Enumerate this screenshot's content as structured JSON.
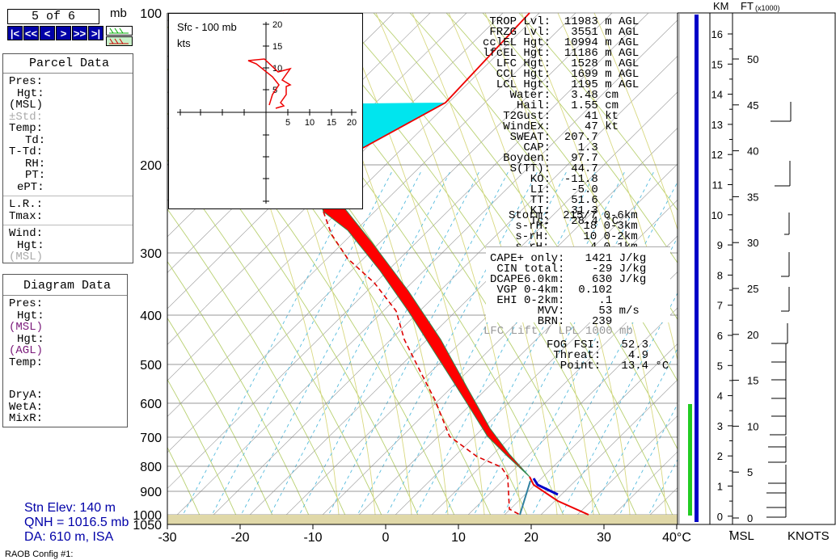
{
  "header": {
    "page_counter": "5 of 6",
    "unit": "mb"
  },
  "nav": {
    "buttons": [
      "|<",
      "<<",
      "<",
      ">",
      ">>",
      ">|"
    ]
  },
  "parcel_panel": {
    "title": "Parcel Data",
    "rows_a": [
      "Pres:",
      "Hgt:",
      "(MSL)",
      "±Std:",
      "Temp:",
      "Td:",
      "T-Td:",
      "RH:",
      "PT:",
      "ePT:"
    ],
    "rows_b": [
      "L.R.:",
      "Tmax:"
    ],
    "rows_c": [
      "Wind:",
      "Hgt:",
      "(MSL)"
    ]
  },
  "diagram_panel": {
    "title": "Diagram Data",
    "rows_a": [
      "Pres:",
      "Hgt:",
      "(MSL)",
      "Hgt:",
      "(AGL)",
      "Temp:"
    ],
    "rows_b": [
      "DryA:",
      "WetA:",
      "MixR:"
    ]
  },
  "station": {
    "elev": "Stn Elev: 140 m",
    "qnh": "QNH = 1016.5 mb",
    "da": "DA: 610 m, ISA"
  },
  "config": "RAOB Config #1:",
  "skewt": {
    "p_labels": [
      "100",
      "200",
      "300",
      "400",
      "500",
      "600",
      "700",
      "800",
      "900",
      "1000",
      "1050"
    ],
    "t_labels": [
      "-30",
      "-20",
      "-10",
      "0",
      "10",
      "20",
      "30",
      "40°C"
    ]
  },
  "hodograph": {
    "title": "Sfc - 100 mb",
    "unit": "kts",
    "y_ticks": [
      "20",
      "15",
      "10",
      "5"
    ],
    "x_ticks": [
      "5",
      "10",
      "15",
      "20"
    ]
  },
  "indices": {
    "block1": [
      [
        "TROP Lvl:",
        "11983",
        "m AGL"
      ],
      [
        "FRZG Lvl:",
        "3551",
        "m AGL"
      ],
      [
        "cclEL Hgt:",
        "10994",
        "m AGL"
      ],
      [
        "lfcEL Hgt:",
        "11186",
        "m AGL"
      ],
      [
        "LFC Hgt:",
        "1528",
        "m AGL"
      ],
      [
        "CCL Hgt:",
        "1699",
        "m AGL"
      ],
      [
        "LCL Hgt:",
        "1195",
        "m AGL"
      ],
      [
        "Water:",
        "3.48",
        "cm"
      ],
      [
        "Hail:",
        "1.55",
        "cm"
      ],
      [
        "T2Gust:",
        "41",
        "kt"
      ],
      [
        "WindEx:",
        "47",
        "kt"
      ],
      [
        "SWEAT:",
        "207.7",
        ""
      ],
      [
        "CAP:",
        "1.3",
        ""
      ],
      [
        "Boyden:",
        "97.7",
        ""
      ],
      [
        "S(TT):",
        "44.7",
        ""
      ],
      [
        "KO:",
        "-11.8",
        ""
      ],
      [
        "LI:",
        "-5.0",
        ""
      ],
      [
        "TT:",
        "51.6",
        ""
      ],
      [
        "KI:",
        "31.3",
        ""
      ],
      [
        "Tc:",
        "28.4",
        "°C"
      ]
    ],
    "block2": [
      [
        "Storm:",
        "215/7",
        "0-6km"
      ],
      [
        "s-rH:",
        "18",
        "0-3km"
      ],
      [
        "s-rH:",
        "10",
        "0-2km"
      ],
      [
        "s-rH:",
        "4",
        "0-1km"
      ]
    ],
    "block3": [
      [
        "CAPE+ only:",
        "1421",
        "J/kg"
      ],
      [
        "CIN total:",
        "-29",
        "J/kg"
      ],
      [
        "DCAPE6.0km:",
        "630",
        "J/kg"
      ],
      [
        "VGP 0-4km:",
        "0.102",
        ""
      ],
      [
        "EHI 0-2km:",
        ".1",
        ""
      ],
      [
        "MVV:",
        "53",
        "m/s"
      ],
      [
        "BRN:",
        "239",
        ""
      ]
    ],
    "lift_note": "LFC Lift / LPL 1000 mb",
    "fog": [
      [
        "FOG FSI:",
        "52.3",
        ""
      ],
      [
        "Threat:",
        "4.9",
        ""
      ],
      [
        "Point:",
        "13.4",
        "°C"
      ]
    ]
  },
  "height_axis": {
    "km_label": "KM",
    "ft_label": "FT",
    "ft_mult": "(x1000)",
    "km_ticks": [
      "16",
      "15",
      "14",
      "13",
      "12",
      "11",
      "10",
      "9",
      "8",
      "7",
      "6",
      "5",
      "4",
      "3",
      "2",
      "1",
      "0"
    ],
    "ft_ticks": [
      "50",
      "45",
      "40",
      "35",
      "30",
      "25",
      "20",
      "15",
      "10",
      "5",
      "0"
    ],
    "msl_label": "MSL",
    "knots_label": "KNOTS"
  },
  "colors": {
    "accent": "#0000a8",
    "cape": "#ff0000",
    "cin": "#00e5ee",
    "ground": "#e0d8a8",
    "green_bar": "#22cc22"
  }
}
